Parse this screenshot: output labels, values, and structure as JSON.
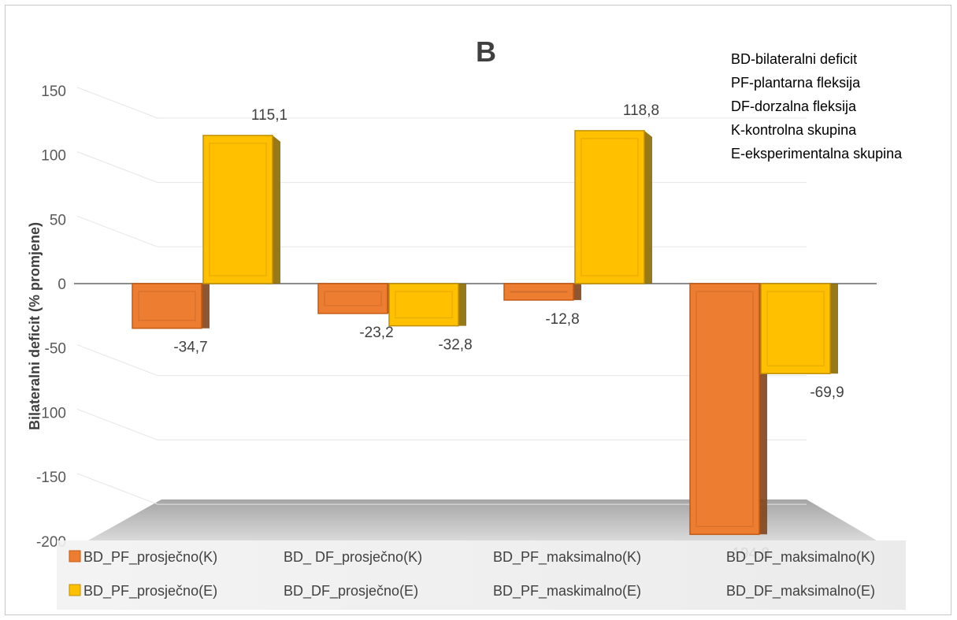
{
  "chart_data": {
    "type": "bar",
    "title": "B",
    "ylabel": "Bilateralni deficit (% promjene)",
    "xlabel": "",
    "ylim": [
      -200,
      150
    ],
    "yticks": [
      150,
      100,
      50,
      0,
      -50,
      -100,
      -150,
      -200
    ],
    "grid": true,
    "legend_position": "bottom",
    "categories": [
      "PF_prosječno",
      "DF_prosječno",
      "PF_maksimalno",
      "DF_maksimalno"
    ],
    "series": [
      {
        "name": "K",
        "color": "#ED7D31",
        "values": [
          -34.7,
          -23.2,
          -12.8,
          -194.8
        ],
        "labels": [
          "-34,7",
          "-23,2",
          "-12,8",
          "-194,8"
        ]
      },
      {
        "name": "E",
        "color": "#FFC000",
        "values": [
          115.1,
          -32.8,
          118.8,
          -69.9
        ],
        "labels": [
          "115,1",
          "-32,8",
          "118,8",
          "-69,9"
        ]
      }
    ],
    "annotations": [
      "BD-bilateralni deficit",
      "PF-plantarna fleksija",
      "DF-dorzalna fleksija",
      "K-kontrolna skupina",
      "E-eksperimentalna skupina"
    ],
    "legend": {
      "row_k": [
        "BD_PF_prosječno(K)",
        "BD_ DF_prosječno(K)",
        "BD_PF_maksimalno(K)",
        "BD_DF_maksimalno(K)"
      ],
      "row_e": [
        "BD_PF_prosječno(E)",
        "BD_DF_prosječno(E)",
        "BD_PF_maskimalno(E)",
        "BD_DF_maksimalno(E)"
      ]
    }
  }
}
